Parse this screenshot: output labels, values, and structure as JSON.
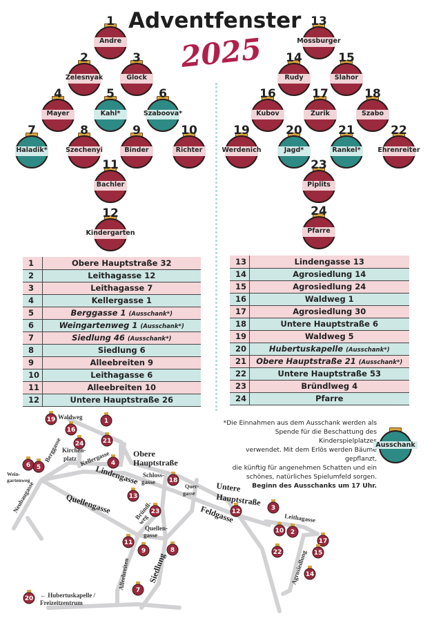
{
  "header": {
    "title": "Adventfenster",
    "year": "2025"
  },
  "colors": {
    "red": "#9b2a3e",
    "teal": "#2e8a84",
    "band_red": "#f2d4d8",
    "band_teal": "#d2ecea",
    "table_pink": "#f5d6d9",
    "table_teal": "#cde7e5",
    "year": "#b0204a"
  },
  "ornaments": [
    {
      "number": "1",
      "name": "Andre",
      "ausschank": false
    },
    {
      "number": "2",
      "name": "Zelesnyak",
      "ausschank": false
    },
    {
      "number": "3",
      "name": "Glock",
      "ausschank": false
    },
    {
      "number": "4",
      "name": "Mayer",
      "ausschank": false
    },
    {
      "number": "5",
      "name": "Kahl*",
      "ausschank": true
    },
    {
      "number": "6",
      "name": "Szaboova*",
      "ausschank": true
    },
    {
      "number": "7",
      "name": "Haladik*",
      "ausschank": true
    },
    {
      "number": "8",
      "name": "Szechenyi",
      "ausschank": false
    },
    {
      "number": "9",
      "name": "Binder",
      "ausschank": false
    },
    {
      "number": "10",
      "name": "Richter",
      "ausschank": false
    },
    {
      "number": "11",
      "name": "Bachler",
      "ausschank": false
    },
    {
      "number": "12",
      "name": "Kindergarten",
      "ausschank": false
    },
    {
      "number": "13",
      "name": "Mossburger",
      "ausschank": false
    },
    {
      "number": "14",
      "name": "Rudy",
      "ausschank": false
    },
    {
      "number": "15",
      "name": "Slahor",
      "ausschank": false
    },
    {
      "number": "16",
      "name": "Kubov",
      "ausschank": false
    },
    {
      "number": "17",
      "name": "Zurik",
      "ausschank": false
    },
    {
      "number": "18",
      "name": "Szabo",
      "ausschank": false
    },
    {
      "number": "19",
      "name": "Werdenich",
      "ausschank": false
    },
    {
      "number": "20",
      "name": "Jagd*",
      "ausschank": true
    },
    {
      "number": "21",
      "name": "Rankel*",
      "ausschank": true
    },
    {
      "number": "22",
      "name": "Ehrenreiter",
      "ausschank": false
    },
    {
      "number": "23",
      "name": "Piplits",
      "ausschank": false
    },
    {
      "number": "24",
      "name": "Pfarre",
      "ausschank": false
    }
  ],
  "addresses": [
    {
      "number": "1",
      "address": "Obere Hauptstraße 32",
      "note": ""
    },
    {
      "number": "2",
      "address": "Leithagasse 12",
      "note": ""
    },
    {
      "number": "3",
      "address": "Leithagasse 7",
      "note": ""
    },
    {
      "number": "4",
      "address": "Kellergasse 1",
      "note": ""
    },
    {
      "number": "5",
      "address": "Berggasse 1",
      "note": "(Ausschank*)"
    },
    {
      "number": "6",
      "address": "Weingartenweg 1",
      "note": "(Ausschank*)"
    },
    {
      "number": "7",
      "address": "Siedlung 46",
      "note": "(Ausschank*)"
    },
    {
      "number": "8",
      "address": "Siedlung 6",
      "note": ""
    },
    {
      "number": "9",
      "address": "Alleebreiten 9",
      "note": ""
    },
    {
      "number": "10",
      "address": "Leithagasse 6",
      "note": ""
    },
    {
      "number": "11",
      "address": "Alleebreiten 10",
      "note": ""
    },
    {
      "number": "12",
      "address": "Untere Hauptstraße 26",
      "note": ""
    },
    {
      "number": "13",
      "address": "Lindengasse 13",
      "note": ""
    },
    {
      "number": "14",
      "address": "Agrosiedlung 14",
      "note": ""
    },
    {
      "number": "15",
      "address": "Agrosiedlung 24",
      "note": ""
    },
    {
      "number": "16",
      "address": "Waldweg 1",
      "note": ""
    },
    {
      "number": "17",
      "address": "Agrosiedlung 30",
      "note": ""
    },
    {
      "number": "18",
      "address": "Untere Hauptstraße 6",
      "note": ""
    },
    {
      "number": "19",
      "address": "Waldweg 5",
      "note": ""
    },
    {
      "number": "20",
      "address": "Hubertuskapelle",
      "note": "(Ausschank*)"
    },
    {
      "number": "21",
      "address": "Obere Hauptstraße 21",
      "note": "(Ausschank*)"
    },
    {
      "number": "22",
      "address": "Untere Hauptstraße 53",
      "note": ""
    },
    {
      "number": "23",
      "address": "Bründlweg 4",
      "note": ""
    },
    {
      "number": "24",
      "address": "Pfarre",
      "note": ""
    }
  ],
  "note": {
    "lines": [
      "*Die Einnahmen aus dem Ausschank werden als",
      "Spende für die Beschattung des Kinderspielplatzes",
      "verwendet. Mit dem Erlös werden Bäume gepflanzt,",
      "die künftig für angenehmen Schatten und ein",
      "schönes, natürliches Spielumfeld sorgen."
    ],
    "start": "Beginn des Ausschanks um 17 Uhr.",
    "legend_label": "Ausschank"
  },
  "map": {
    "streets": [
      "Waldweg",
      "Berggasse",
      "Kirchen-",
      "platz",
      "Kellergasse",
      "Obere",
      "Hauptstraße",
      "Lindengasse",
      "Wein-",
      "gartenweg",
      "Neubaugasse",
      "Schloss-",
      "gasse",
      "Quer-",
      "gasse",
      "Untere",
      "Hauptstraße",
      "Quellengasse",
      "Bründl-",
      "weg",
      "Quellen-",
      "gasse",
      "Feldgasse",
      "Leithagasse",
      "Agrosiedlung",
      "Alleebreiten",
      "Siedlung"
    ],
    "hubertus": [
      "← Hubertuskapelle /",
      "Freizeitzentrum"
    ],
    "markers": [
      "19",
      "1",
      "16",
      "21",
      "24",
      "4",
      "6",
      "5",
      "18",
      "13",
      "23",
      "12",
      "3",
      "10",
      "2",
      "17",
      "15",
      "22",
      "14",
      "11",
      "9",
      "8",
      "7",
      "20"
    ]
  }
}
